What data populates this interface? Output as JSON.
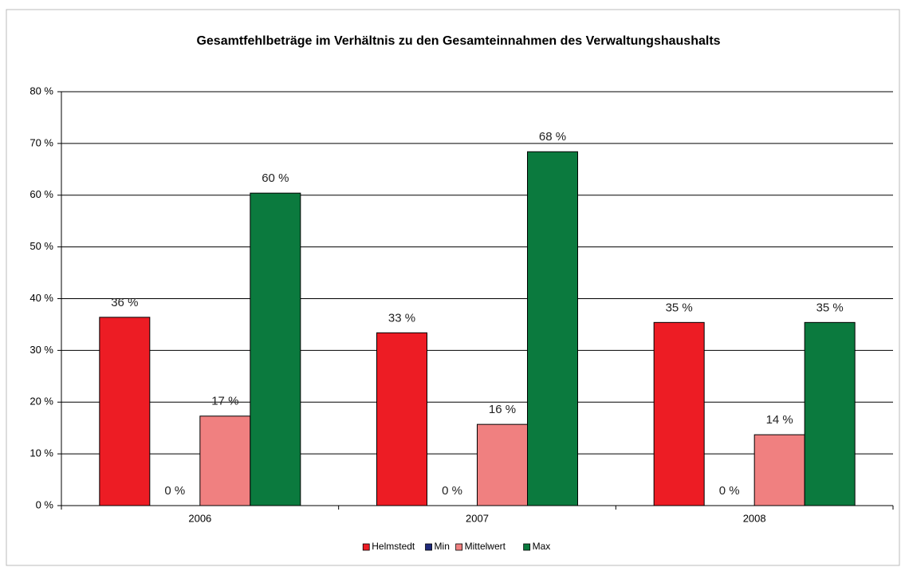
{
  "chart_data": {
    "type": "bar",
    "title": "Gesamtfehlbeträge im Verhältnis zu den Gesamteinnahmen des Verwaltungshaushalts",
    "categories": [
      "2006",
      "2007",
      "2008"
    ],
    "series": [
      {
        "name": "Helmstedt",
        "color": "#ed1c24",
        "values": [
          36.4,
          33.4,
          35.4
        ],
        "value_labels": [
          "36 %",
          "33 %",
          "35 %"
        ]
      },
      {
        "name": "Min",
        "color": "#1f2a7a",
        "values": [
          0,
          0,
          0
        ],
        "value_labels": [
          "0 %",
          "0 %",
          "0 %"
        ]
      },
      {
        "name": "Mittelwert",
        "color": "#f08080",
        "values": [
          17.3,
          15.7,
          13.7
        ],
        "value_labels": [
          "17 %",
          "16 %",
          "14 %"
        ]
      },
      {
        "name": "Max",
        "color": "#0b7a3e",
        "values": [
          60.4,
          68.4,
          35.4
        ],
        "value_labels": [
          "60 %",
          "68 %",
          "35 %"
        ]
      }
    ],
    "ylim": [
      0,
      80
    ],
    "yticks": [
      {
        "value": 0,
        "label": "0 %"
      },
      {
        "value": 10,
        "label": "10 %"
      },
      {
        "value": 20,
        "label": "20 %"
      },
      {
        "value": 30,
        "label": "30 %"
      },
      {
        "value": 40,
        "label": "40 %"
      },
      {
        "value": 50,
        "label": "50 %"
      },
      {
        "value": 60,
        "label": "60 %"
      },
      {
        "value": 70,
        "label": "70 %"
      },
      {
        "value": 80,
        "label": "80 %"
      }
    ],
    "grid": true,
    "legend": "bottom"
  }
}
